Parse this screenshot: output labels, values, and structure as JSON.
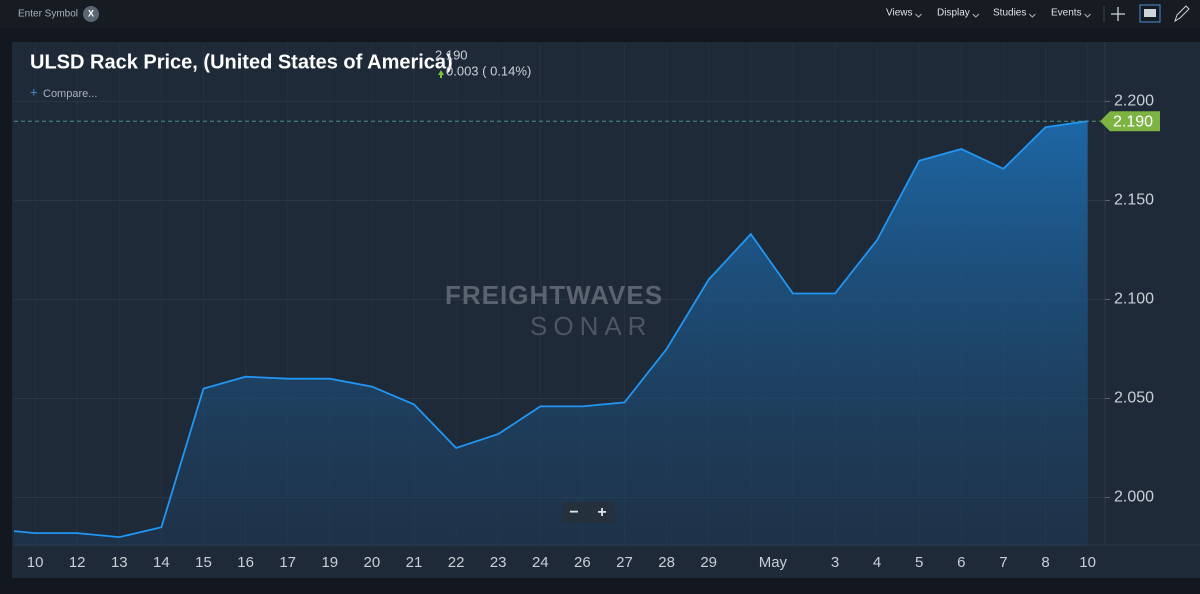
{
  "toolbar": {
    "symbol_placeholder": "Enter Symbol",
    "clear": "X",
    "menus": [
      "Views",
      "Display",
      "Studies",
      "Events"
    ]
  },
  "chart_data": {
    "type": "line",
    "title": "ULSD Rack Price, (United States of America)",
    "last_price": "2.190",
    "change": "0.003 ( 0.14%)",
    "compare": "Compare...",
    "watermark": [
      "FREIGHTWAVES",
      "SONAR"
    ],
    "zoom": [
      "−",
      "+"
    ],
    "categories": [
      null,
      "10",
      "12",
      "13",
      "14",
      "15",
      "16",
      "17",
      "19",
      "20",
      "21",
      "22",
      "23",
      "24",
      "26",
      "27",
      "28",
      "29",
      null,
      "May",
      "3",
      "4",
      "5",
      "6",
      "7",
      "8",
      "10"
    ],
    "values": [
      1.984,
      1.982,
      1.982,
      1.98,
      1.985,
      2.055,
      2.061,
      2.06,
      2.06,
      2.056,
      2.047,
      2.025,
      2.032,
      2.046,
      2.046,
      2.048,
      2.075,
      2.11,
      2.133,
      2.103,
      2.103,
      2.13,
      2.17,
      2.176,
      2.166,
      2.187,
      2.19
    ],
    "last_value_label": "2.190",
    "color": "#2196f3",
    "ylim": [
      1.976,
      2.229
    ],
    "yticks": [
      {
        "value": 2.0,
        "label": "2.000"
      },
      {
        "value": 2.05,
        "label": "2.050"
      },
      {
        "value": 2.1,
        "label": "2.100"
      },
      {
        "value": 2.15,
        "label": "2.150"
      },
      {
        "value": 2.2,
        "label": "2.200"
      }
    ],
    "grid": true
  }
}
